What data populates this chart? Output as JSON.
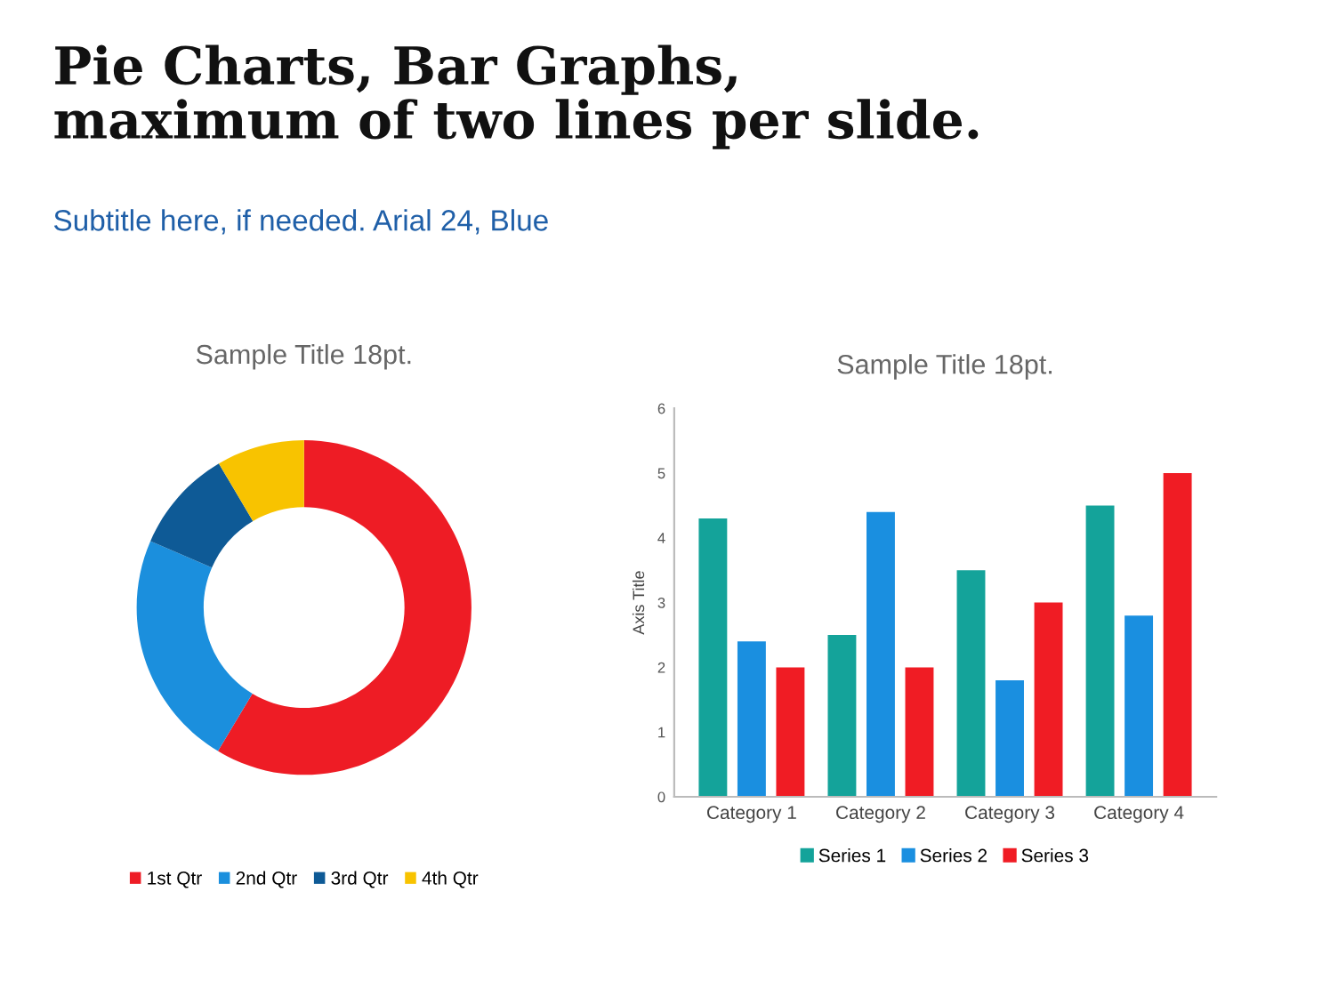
{
  "chart_data": [
    {
      "type": "donut",
      "title": "Sample Title 18pt.",
      "annotations": [
        "Pie Charts, Bar Graphs,\nmaximum of two lines per slide.",
        "Subtitle here, if needed. Arial 24, Blue"
      ],
      "categories": [
        "1st Qtr",
        "2nd Qtr",
        "3rd Qtr",
        "4th Qtr"
      ],
      "values": [
        58.6,
        22.9,
        10.0,
        8.5
      ],
      "colors": [
        "#ee1c25",
        "#1b8fdd",
        "#0e5a96",
        "#f8c300"
      ],
      "legend": "bottom"
    },
    {
      "type": "bar",
      "title": "Sample Title 18pt.",
      "ylabel": "Axis Title",
      "categories": [
        "Category 1",
        "Category 2",
        "Category 3",
        "Category 4"
      ],
      "series": [
        {
          "name": "Series 1",
          "color": "#14a39a",
          "values": [
            4.3,
            2.5,
            3.5,
            4.5
          ]
        },
        {
          "name": "Series 2",
          "color": "#1a8fe0",
          "values": [
            2.4,
            4.4,
            1.8,
            2.8
          ]
        },
        {
          "name": "Series 3",
          "color": "#f01c24",
          "values": [
            2,
            2,
            3,
            5
          ]
        }
      ],
      "ylim": [
        0,
        6
      ],
      "yticks": [
        0,
        1,
        2,
        3,
        4,
        5,
        6
      ],
      "grid": false,
      "legend": "bottom"
    }
  ]
}
